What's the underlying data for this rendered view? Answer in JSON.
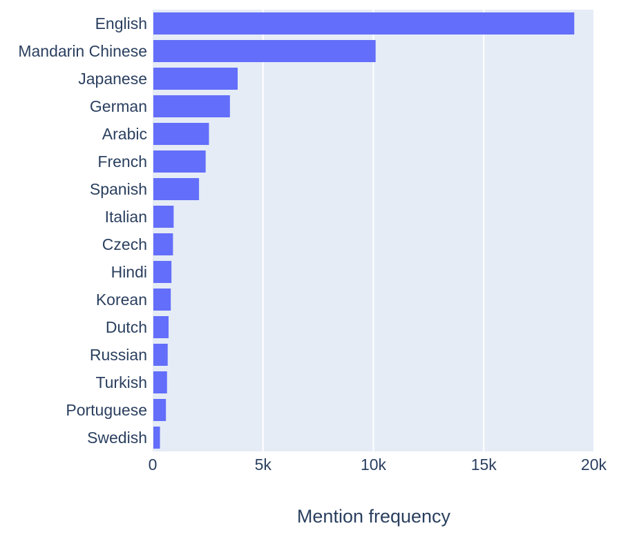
{
  "chart_data": {
    "type": "bar",
    "orientation": "horizontal",
    "categories": [
      "English",
      "Mandarin Chinese",
      "Japanese",
      "German",
      "Arabic",
      "French",
      "Spanish",
      "Italian",
      "Czech",
      "Hindi",
      "Korean",
      "Dutch",
      "Russian",
      "Turkish",
      "Portuguese",
      "Swedish"
    ],
    "values": [
      19100,
      10100,
      3850,
      3500,
      2550,
      2400,
      2100,
      950,
      920,
      850,
      820,
      720,
      680,
      650,
      600,
      330
    ],
    "xlabel": "Mention frequency",
    "ylabel": "",
    "xlim": [
      0,
      20000
    ],
    "x_ticks": [
      0,
      5000,
      10000,
      15000,
      20000
    ],
    "x_tick_labels": [
      "0",
      "5k",
      "10k",
      "15k",
      "20k"
    ],
    "grid": true,
    "colors": {
      "bar": "#636efa",
      "plot_bg": "#e5ecf6",
      "grid": "#ffffff",
      "text": "#2a3f5f"
    }
  }
}
